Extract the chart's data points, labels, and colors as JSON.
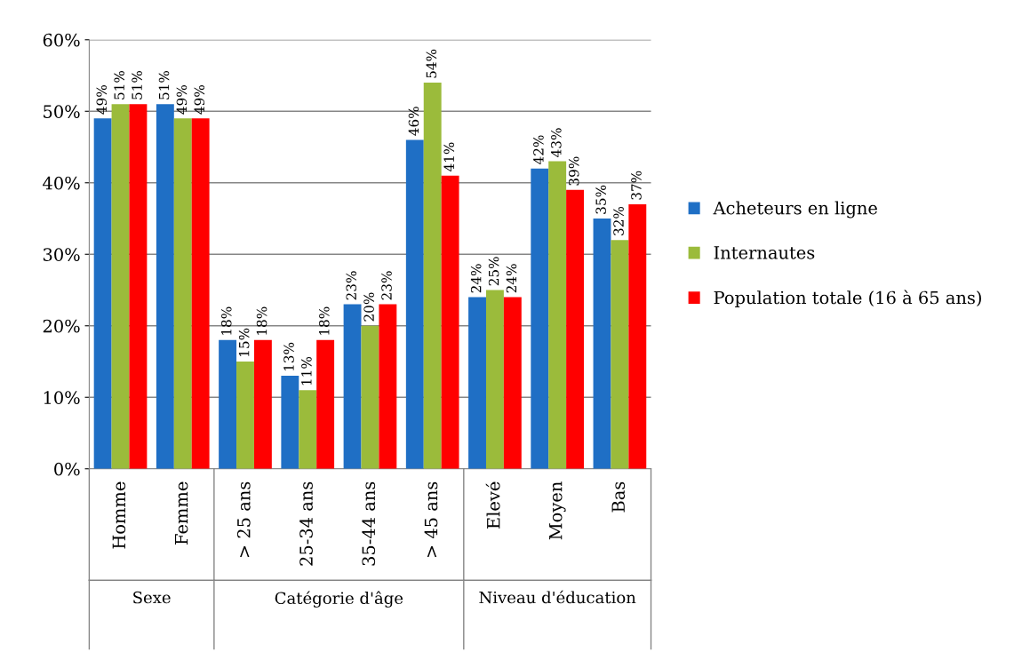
{
  "chart_data": {
    "type": "bar",
    "categories": [
      "Homme",
      "Femme",
      "> 25 ans",
      "25-34 ans",
      "35-44 ans",
      "> 45 ans",
      "Elevé",
      "Moyen",
      "Bas"
    ],
    "series": [
      {
        "name": "Acheteurs en ligne",
        "color": "#1f6fc5",
        "values": [
          49,
          51,
          18,
          13,
          23,
          46,
          24,
          42,
          35
        ],
        "value_labels": [
          "49%",
          "51%",
          "18%",
          "13%",
          "23%",
          "46%",
          "24%",
          "42%",
          "35%"
        ]
      },
      {
        "name": "Internautes",
        "color": "#9bbb3b",
        "values": [
          51,
          49,
          15,
          11,
          20,
          54,
          25,
          43,
          32
        ],
        "value_labels": [
          "51%",
          "49%",
          "15%",
          "11%",
          "20%",
          "54%",
          "25%",
          "43%",
          "32%"
        ]
      },
      {
        "name": "Population totale (16 à 65 ans)",
        "color": "#ff0000",
        "values": [
          51,
          49,
          18,
          18,
          23,
          41,
          24,
          39,
          37
        ],
        "value_labels": [
          "51%",
          "49%",
          "18%",
          "18%",
          "23%",
          "41%",
          "24%",
          "39%",
          "37%"
        ]
      }
    ],
    "ylim": [
      0,
      60
    ],
    "yticks": [
      {
        "value": 0,
        "label": "0%"
      },
      {
        "value": 10,
        "label": "10%"
      },
      {
        "value": 20,
        "label": "20%"
      },
      {
        "value": 30,
        "label": "30%"
      },
      {
        "value": 40,
        "label": "40%"
      },
      {
        "value": 50,
        "label": "50%"
      },
      {
        "value": 60,
        "label": "60%"
      }
    ],
    "grid": "y",
    "legend": "right",
    "annotations": [
      "Sexe",
      "Catégorie d'âge",
      "Niveau d'éducation"
    ]
  }
}
